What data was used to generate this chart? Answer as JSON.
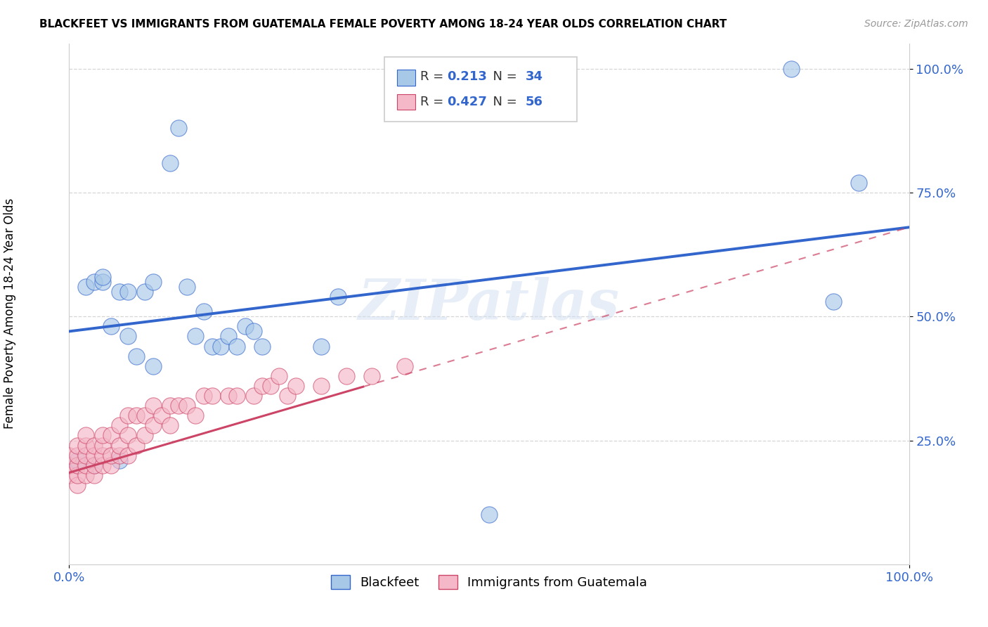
{
  "title": "BLACKFEET VS IMMIGRANTS FROM GUATEMALA FEMALE POVERTY AMONG 18-24 YEAR OLDS CORRELATION CHART",
  "source": "Source: ZipAtlas.com",
  "ylabel": "Female Poverty Among 18-24 Year Olds",
  "R1": 0.213,
  "N1": 34,
  "R2": 0.427,
  "N2": 56,
  "color_blue": "#a8c8e8",
  "color_pink": "#f4b8c8",
  "line_blue": "#3366cc",
  "line_pink": "#cc4466",
  "watermark": "ZIPatlas",
  "legend1_label": "Blackfeet",
  "legend2_label": "Immigrants from Guatemala",
  "blue_points_x": [
    0.01,
    0.01,
    0.02,
    0.03,
    0.03,
    0.04,
    0.04,
    0.05,
    0.06,
    0.06,
    0.07,
    0.07,
    0.08,
    0.09,
    0.1,
    0.1,
    0.12,
    0.13,
    0.14,
    0.15,
    0.16,
    0.17,
    0.18,
    0.19,
    0.2,
    0.21,
    0.22,
    0.23,
    0.3,
    0.32,
    0.5,
    0.86,
    0.91,
    0.94
  ],
  "blue_points_y": [
    0.2,
    0.21,
    0.56,
    0.57,
    0.2,
    0.57,
    0.58,
    0.48,
    0.55,
    0.21,
    0.46,
    0.55,
    0.42,
    0.55,
    0.57,
    0.4,
    0.81,
    0.88,
    0.56,
    0.46,
    0.51,
    0.44,
    0.44,
    0.46,
    0.44,
    0.48,
    0.47,
    0.44,
    0.44,
    0.54,
    0.1,
    1.0,
    0.53,
    0.77
  ],
  "pink_points_x": [
    0.0,
    0.0,
    0.0,
    0.01,
    0.01,
    0.01,
    0.01,
    0.01,
    0.02,
    0.02,
    0.02,
    0.02,
    0.02,
    0.03,
    0.03,
    0.03,
    0.03,
    0.04,
    0.04,
    0.04,
    0.04,
    0.05,
    0.05,
    0.05,
    0.06,
    0.06,
    0.06,
    0.07,
    0.07,
    0.07,
    0.08,
    0.08,
    0.09,
    0.09,
    0.1,
    0.1,
    0.11,
    0.12,
    0.12,
    0.13,
    0.14,
    0.15,
    0.16,
    0.17,
    0.19,
    0.2,
    0.22,
    0.23,
    0.24,
    0.25,
    0.26,
    0.27,
    0.3,
    0.33,
    0.36,
    0.4
  ],
  "pink_points_y": [
    0.18,
    0.2,
    0.22,
    0.16,
    0.18,
    0.2,
    0.22,
    0.24,
    0.18,
    0.2,
    0.22,
    0.24,
    0.26,
    0.18,
    0.2,
    0.22,
    0.24,
    0.2,
    0.22,
    0.24,
    0.26,
    0.2,
    0.22,
    0.26,
    0.22,
    0.24,
    0.28,
    0.22,
    0.26,
    0.3,
    0.24,
    0.3,
    0.26,
    0.3,
    0.28,
    0.32,
    0.3,
    0.28,
    0.32,
    0.32,
    0.32,
    0.3,
    0.34,
    0.34,
    0.34,
    0.34,
    0.34,
    0.36,
    0.36,
    0.38,
    0.34,
    0.36,
    0.36,
    0.38,
    0.38,
    0.4
  ],
  "blue_trend": [
    0.47,
    0.68
  ],
  "pink_trend_solid_end_x": 0.35,
  "pink_trend": [
    0.185,
    0.68
  ],
  "xlim": [
    0.0,
    1.0
  ],
  "ylim": [
    0.0,
    1.05
  ],
  "yticks": [
    0.25,
    0.5,
    0.75,
    1.0
  ],
  "ytick_labels": [
    "25.0%",
    "50.0%",
    "75.0%",
    "100.0%"
  ],
  "xtick_labels": [
    "0.0%",
    "100.0%"
  ]
}
